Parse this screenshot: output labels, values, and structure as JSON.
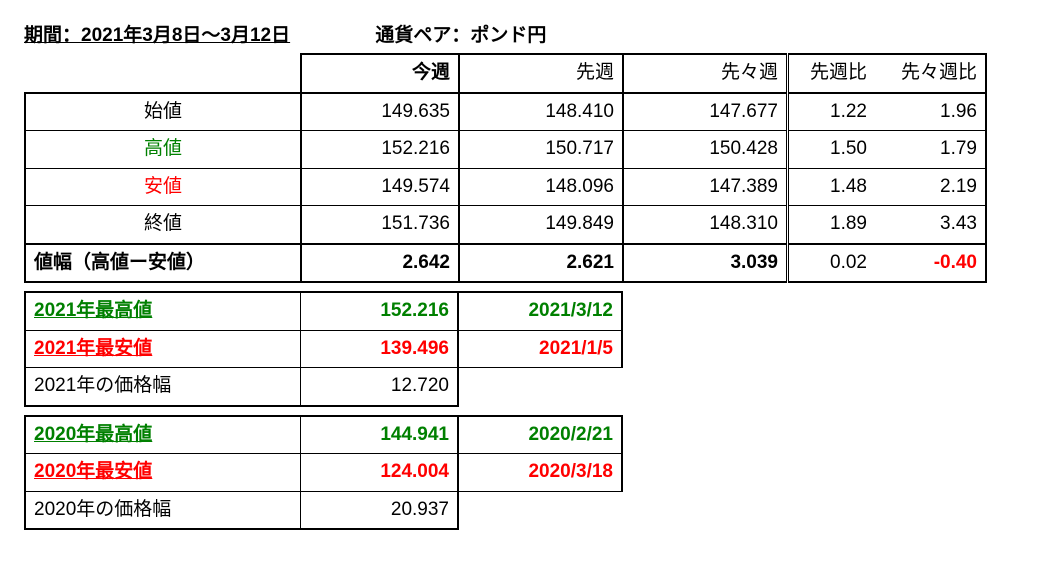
{
  "title": {
    "period": "期間：2021年3月8日～3月12日",
    "pair": "通貨ペア：ポンド円"
  },
  "main_table": {
    "headers": {
      "thisweek": "今週",
      "lastweek": "先週",
      "weekbefore": "先々週",
      "diff1": "先週比",
      "diff2": "先々週比"
    },
    "rows": {
      "open": {
        "label": "始値",
        "label_color": "#000000",
        "thisweek": "149.635",
        "lastweek": "148.410",
        "weekbefore": "147.677",
        "diff1": "1.22",
        "diff2": "1.96"
      },
      "high": {
        "label": "高値",
        "label_color": "#008000",
        "thisweek": "152.216",
        "lastweek": "150.717",
        "weekbefore": "150.428",
        "diff1": "1.50",
        "diff2": "1.79"
      },
      "low": {
        "label": "安値",
        "label_color": "#ff0000",
        "thisweek": "149.574",
        "lastweek": "148.096",
        "weekbefore": "147.389",
        "diff1": "1.48",
        "diff2": "2.19"
      },
      "close": {
        "label": "終値",
        "label_color": "#000000",
        "thisweek": "151.736",
        "lastweek": "149.849",
        "weekbefore": "148.310",
        "diff1": "1.89",
        "diff2": "3.43"
      }
    },
    "range": {
      "label": "値幅（高値ー安値）",
      "thisweek": "2.642",
      "lastweek": "2.621",
      "weekbefore": "3.039",
      "diff1": "0.02",
      "diff2": "-0.40",
      "diff2_color": "#ff0000",
      "diff2_bold": true
    }
  },
  "summary_2021": {
    "high": {
      "label": "2021年最高値",
      "value": "152.216",
      "date": "2021/3/12"
    },
    "low": {
      "label": "2021年最安値",
      "value": "139.496",
      "date": "2021/1/5"
    },
    "width": {
      "label": "2021年の価格幅",
      "value": "12.720"
    }
  },
  "summary_2020": {
    "high": {
      "label": "2020年最高値",
      "value": "144.941",
      "date": "2020/2/21"
    },
    "low": {
      "label": "2020年最安値",
      "value": "124.004",
      "date": "2020/3/18"
    },
    "width": {
      "label": "2020年の価格幅",
      "value": "20.937"
    }
  }
}
